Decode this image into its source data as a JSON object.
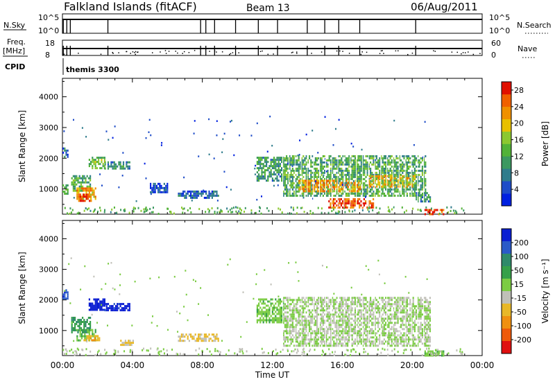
{
  "header": {
    "site": "Falkland Islands (fitACF)",
    "beam": "Beam 13",
    "date": "06/Aug/2011"
  },
  "strip_labels": {
    "nsky": "N.Sky",
    "nsky_ticks": [
      "10^5",
      "10^0"
    ],
    "nsearch": "N.Search",
    "freq": "Freq.",
    "freq_unit": "[MHz]",
    "freq_ticks": [
      "18",
      "8"
    ],
    "nave": "Nave",
    "nave_ticks": [
      "60",
      "0"
    ],
    "cpid": "CPID",
    "program": "themis 3300"
  },
  "colors": {
    "power_scale": [
      "#0020e0",
      "#1e4cc8",
      "#2f7c8c",
      "#3c9860",
      "#52b238",
      "#8cc830",
      "#e8c000",
      "#f09000",
      "#f06000",
      "#e01000"
    ],
    "velocity_scale": [
      "#0a1ed2",
      "#2a5ac8",
      "#2f8a6a",
      "#36a04a",
      "#7ccc44",
      "#c0c0b8",
      "#e8b828",
      "#f09010",
      "#ee5a0a",
      "#e01010"
    ]
  },
  "chart_data": [
    {
      "type": "heatmap",
      "panel": "power",
      "ylabel": "Slant Range [km]",
      "xlabel": "",
      "x_ticks": [
        "00:00",
        "04:00",
        "08:00",
        "12:00",
        "16:00",
        "20:00",
        "00:00"
      ],
      "xlim": [
        0,
        24
      ],
      "ylim": [
        180,
        4600
      ],
      "y_ticks": [
        1000,
        2000,
        3000,
        4000
      ],
      "colorbar": {
        "label": "Power [dB]",
        "ticks": [
          4,
          8,
          12,
          16,
          20,
          24,
          28
        ],
        "range": [
          0,
          30
        ]
      },
      "regions": [
        {
          "t0": 0.5,
          "t1": 1.6,
          "r0": 950,
          "r1": 1450,
          "level": 12
        },
        {
          "t0": 0.8,
          "t1": 1.9,
          "r0": 650,
          "r1": 1050,
          "level": 22
        },
        {
          "t0": 0.9,
          "t1": 1.6,
          "r0": 600,
          "r1": 850,
          "level": 26
        },
        {
          "t0": 1.5,
          "t1": 2.4,
          "r0": 1700,
          "r1": 2050,
          "level": 14
        },
        {
          "t0": 2.4,
          "t1": 3.8,
          "r0": 1650,
          "r1": 1900,
          "level": 10
        },
        {
          "t0": 0.0,
          "t1": 0.3,
          "r0": 2050,
          "r1": 2350,
          "level": 6
        },
        {
          "t0": 0.0,
          "t1": 0.3,
          "r0": 850,
          "r1": 1150,
          "level": 14
        },
        {
          "t0": 6.6,
          "t1": 8.9,
          "r0": 700,
          "r1": 950,
          "level": 6
        },
        {
          "t0": 5.0,
          "t1": 6.0,
          "r0": 900,
          "r1": 1200,
          "level": 4
        },
        {
          "t0": 11.1,
          "t1": 12.6,
          "r0": 1250,
          "r1": 2050,
          "level": 10
        },
        {
          "t0": 12.6,
          "t1": 20.8,
          "r0": 800,
          "r1": 2100,
          "level": 12
        },
        {
          "t0": 13.5,
          "t1": 17.0,
          "r0": 900,
          "r1": 1300,
          "level": 22
        },
        {
          "t0": 15.2,
          "t1": 17.8,
          "r0": 400,
          "r1": 700,
          "level": 26
        },
        {
          "t0": 17.5,
          "t1": 20.2,
          "r0": 1050,
          "r1": 1450,
          "level": 20
        },
        {
          "t0": 20.2,
          "t1": 21.0,
          "r0": 600,
          "r1": 900,
          "level": 10
        },
        {
          "t0": 20.7,
          "t1": 21.8,
          "r0": 180,
          "r1": 350,
          "level": 26
        }
      ]
    },
    {
      "type": "heatmap",
      "panel": "velocity",
      "ylabel": "Slant Range [km]",
      "xlabel": "Time UT",
      "x_ticks": [
        "00:00",
        "04:00",
        "08:00",
        "12:00",
        "16:00",
        "20:00",
        "00:00"
      ],
      "xlim": [
        0,
        24
      ],
      "ylim": [
        180,
        4600
      ],
      "y_ticks": [
        1000,
        2000,
        3000,
        4000
      ],
      "colorbar": {
        "label": "Velocity [m s⁻¹]",
        "ticks": [
          200,
          100,
          50,
          15,
          -15,
          -50,
          -100,
          -200
        ],
        "range": [
          -250,
          250
        ]
      },
      "regions": [
        {
          "t0": 0.5,
          "t1": 1.6,
          "r0": 950,
          "r1": 1450,
          "level": 90
        },
        {
          "t0": 0.8,
          "t1": 1.9,
          "r0": 650,
          "r1": 1050,
          "level": 40
        },
        {
          "t0": 1.2,
          "t1": 2.1,
          "r0": 650,
          "r1": 850,
          "level": -80
        },
        {
          "t0": 1.5,
          "t1": 2.4,
          "r0": 1700,
          "r1": 2050,
          "level": 230
        },
        {
          "t0": 2.4,
          "t1": 3.8,
          "r0": 1650,
          "r1": 1900,
          "level": 220
        },
        {
          "t0": 0.0,
          "t1": 0.3,
          "r0": 2050,
          "r1": 2350,
          "level": 180
        },
        {
          "t0": 3.3,
          "t1": 4.0,
          "r0": 500,
          "r1": 700,
          "level": -60
        },
        {
          "t0": 6.6,
          "t1": 8.9,
          "r0": 650,
          "r1": 900,
          "level": -60
        },
        {
          "t0": 11.1,
          "t1": 12.6,
          "r0": 1250,
          "r1": 2050,
          "level": 30
        },
        {
          "t0": 12.6,
          "t1": 21.0,
          "r0": 500,
          "r1": 2100,
          "level": 0
        },
        {
          "t0": 20.7,
          "t1": 21.8,
          "r0": 180,
          "r1": 350,
          "level": 30
        }
      ]
    }
  ]
}
